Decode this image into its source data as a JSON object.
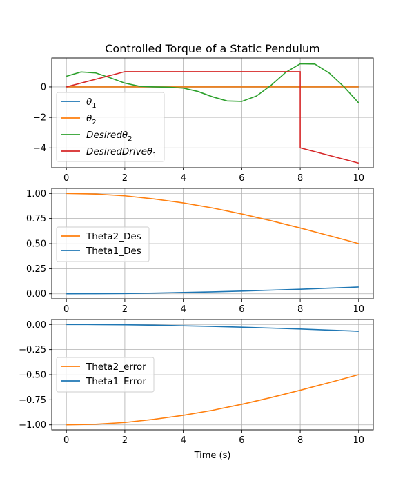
{
  "colors": {
    "blue": "#1f77b4",
    "orange": "#ff7f0e",
    "green": "#2ca02c",
    "red": "#d62728"
  },
  "chart_data": [
    {
      "type": "line",
      "title": "Controlled Torque of a Static Pendulum",
      "xlabel": "",
      "ylabel": "",
      "xlim": [
        -0.5,
        10.5
      ],
      "ylim": [
        -5.3,
        1.9
      ],
      "xticks": [
        0,
        2,
        4,
        6,
        8,
        10
      ],
      "yticks": [
        0,
        -2,
        -4
      ],
      "grid": true,
      "legend_position": "lower-left",
      "series": [
        {
          "name": "θ1",
          "name_main": "θ",
          "name_sub": "1",
          "name_italic": true,
          "color": "blue",
          "x": [
            0,
            10
          ],
          "y": [
            0,
            0
          ]
        },
        {
          "name": "θ2",
          "name_main": "θ",
          "name_sub": "2",
          "name_italic": true,
          "color": "orange",
          "x": [
            0,
            10
          ],
          "y": [
            0,
            0
          ]
        },
        {
          "name": "Desiredθ2",
          "name_main": "Desiredθ",
          "name_sub": "2",
          "name_italic": true,
          "color": "green",
          "x": [
            0,
            0.5,
            1,
            1.5,
            2,
            2.5,
            3,
            3.5,
            4,
            4.5,
            5,
            5.5,
            6,
            6.5,
            7,
            7.5,
            8,
            8.5,
            9,
            9.5,
            10
          ],
          "y": [
            0.7,
            0.98,
            0.92,
            0.6,
            0.25,
            0.04,
            0.0,
            -0.02,
            -0.08,
            -0.3,
            -0.65,
            -0.92,
            -0.95,
            -0.6,
            0.1,
            0.95,
            1.52,
            1.5,
            0.9,
            0.0,
            -1.05
          ]
        },
        {
          "name": "DesiredDriveθ1",
          "name_main": "DesiredDriveθ",
          "name_sub": "1",
          "name_italic": true,
          "color": "red",
          "x": [
            0,
            2,
            8,
            8,
            10
          ],
          "y": [
            0,
            1,
            1,
            -4,
            -5
          ]
        }
      ]
    },
    {
      "type": "line",
      "title": "",
      "xlabel": "",
      "ylabel": "",
      "xlim": [
        -0.5,
        10.5
      ],
      "ylim": [
        -0.05,
        1.05
      ],
      "xticks": [
        0,
        2,
        4,
        6,
        8,
        10
      ],
      "yticks": [
        0.0,
        0.25,
        0.5,
        0.75,
        1.0
      ],
      "ytick_labels": [
        "0.00",
        "0.25",
        "0.50",
        "0.75",
        "1.00"
      ],
      "grid": true,
      "legend_position": "center-left",
      "series": [
        {
          "name": "Theta2_Des",
          "color": "orange",
          "x": [
            0,
            1,
            2,
            3,
            4,
            5,
            6,
            7,
            8,
            9,
            10
          ],
          "y": [
            1.0,
            0.994,
            0.976,
            0.945,
            0.905,
            0.855,
            0.795,
            0.728,
            0.655,
            0.578,
            0.5
          ]
        },
        {
          "name": "Theta1_Des",
          "color": "blue",
          "x": [
            0,
            1,
            2,
            3,
            4,
            5,
            6,
            7,
            8,
            9,
            10
          ],
          "y": [
            0.0,
            0.001,
            0.003,
            0.007,
            0.013,
            0.019,
            0.027,
            0.036,
            0.045,
            0.056,
            0.067
          ]
        }
      ]
    },
    {
      "type": "line",
      "title": "",
      "xlabel": "Time (s)",
      "ylabel": "",
      "xlim": [
        -0.5,
        10.5
      ],
      "ylim": [
        -1.05,
        0.05
      ],
      "xticks": [
        0,
        2,
        4,
        6,
        8,
        10
      ],
      "yticks": [
        0.0,
        -0.25,
        -0.5,
        -0.75,
        -1.0
      ],
      "ytick_labels": [
        "0.00",
        "−0.25",
        "−0.50",
        "−0.75",
        "−1.00"
      ],
      "grid": true,
      "legend_position": "center-left",
      "series": [
        {
          "name": "Theta2_error",
          "color": "orange",
          "x": [
            0,
            1,
            2,
            3,
            4,
            5,
            6,
            7,
            8,
            9,
            10
          ],
          "y": [
            -1.0,
            -0.994,
            -0.976,
            -0.945,
            -0.905,
            -0.855,
            -0.795,
            -0.728,
            -0.655,
            -0.578,
            -0.5
          ]
        },
        {
          "name": "Theta1_Error",
          "color": "blue",
          "x": [
            0,
            1,
            2,
            3,
            4,
            5,
            6,
            7,
            8,
            9,
            10
          ],
          "y": [
            0.0,
            -0.001,
            -0.003,
            -0.007,
            -0.013,
            -0.019,
            -0.027,
            -0.036,
            -0.045,
            -0.056,
            -0.067
          ]
        }
      ]
    }
  ]
}
